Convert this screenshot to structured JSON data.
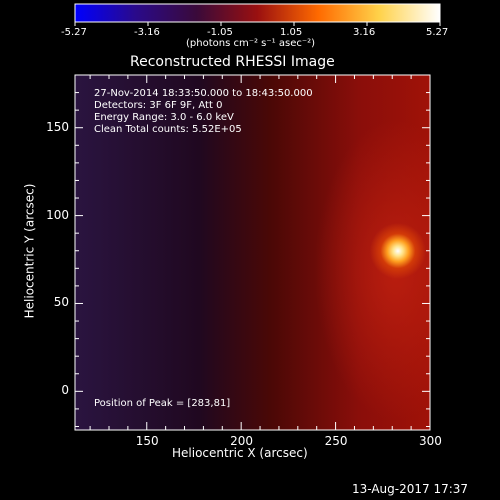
{
  "colorbar": {
    "ticks": [
      "-5.27",
      "-3.16",
      "-1.05",
      "1.05",
      "3.16",
      "5.27"
    ],
    "unit_label": "(photons cm⁻² s⁻¹ asec⁻²)",
    "colors": [
      "#0000ff",
      "#2a0a8a",
      "#3a0a3a",
      "#9a1010",
      "#ff6a00",
      "#ffd24a",
      "#ffffff"
    ]
  },
  "image": {
    "title": "Reconstructed RHESSI Image",
    "info_lines": [
      "27-Nov-2014 18:33:50.000 to 18:43:50.000",
      "Detectors: 3F 6F 9F, Att 0",
      "Energy Range: 3.0 - 6.0 keV",
      "Clean    Total counts: 5.52E+05"
    ],
    "peak_label": "Position of Peak = [283,81]",
    "peak": {
      "x": 283,
      "y": 81
    },
    "x_ticks": [
      "150",
      "200",
      "250",
      "300"
    ],
    "x_tick_values": [
      150,
      200,
      250,
      300
    ],
    "y_ticks": [
      "0",
      "50",
      "100",
      "150"
    ],
    "y_tick_values": [
      0,
      50,
      100,
      150
    ],
    "xlim": [
      112,
      300
    ],
    "ylim": [
      -22,
      180
    ],
    "xlabel": "Heliocentric X (arcsec)",
    "ylabel": "Heliocentric Y (arcsec)"
  },
  "footer": {
    "timestamp": "13-Aug-2017 17:37"
  }
}
